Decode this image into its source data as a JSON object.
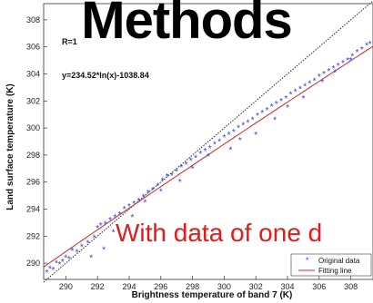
{
  "slide": {
    "title": "Methods",
    "overlay_note": "With data of one d"
  },
  "chart_data": {
    "type": "scatter",
    "xlabel": "Brightness temperature of band 7 (K)",
    "ylabel": "Land surface temperature (K)",
    "xlim": [
      288.6,
      309.4
    ],
    "ylim": [
      288.8,
      309.2
    ],
    "x_ticks": [
      290,
      292,
      294,
      296,
      298,
      300,
      302,
      304,
      306,
      308
    ],
    "y_ticks": [
      290,
      292,
      294,
      296,
      298,
      300,
      302,
      304,
      306,
      308
    ],
    "annotations": [
      "R=1",
      "y=234.52*ln(x)-1038.84"
    ],
    "legend": {
      "placement": "bottom-right",
      "entries": [
        "Original data",
        "Fitting line"
      ]
    },
    "colors": {
      "points": "#2b3fd8",
      "fit": "#e02020",
      "reference": "#222222"
    },
    "series": [
      {
        "name": "Original data",
        "marker": "*",
        "x": [
          288.8,
          289.0,
          289.2,
          289.4,
          289.6,
          289.8,
          290.0,
          290.2,
          290.4,
          290.7,
          291.0,
          291.4,
          291.8,
          292.0,
          292.2,
          292.5,
          292.8,
          293.1,
          293.4,
          293.7,
          294.0,
          294.3,
          294.6,
          294.9,
          295.2,
          295.5,
          295.8,
          296.1,
          296.4,
          296.7,
          297.0,
          297.3,
          297.6,
          297.9,
          298.2,
          298.5,
          298.8,
          299.1,
          299.4,
          299.7,
          300.0,
          300.3,
          300.6,
          300.9,
          301.2,
          301.5,
          301.8,
          302.1,
          302.4,
          302.7,
          303.0,
          303.3,
          303.6,
          303.9,
          304.2,
          304.5,
          304.8,
          305.1,
          305.4,
          305.7,
          306.0,
          306.3,
          306.6,
          306.9,
          307.2,
          307.5,
          307.8,
          308.1,
          308.4,
          308.7,
          309.0,
          309.2,
          291.6,
          292.4,
          293.0,
          294.2,
          295.0,
          296.0,
          297.2,
          298.0,
          299.0,
          300.4,
          301.0,
          302.0,
          303.2,
          304.0,
          305.0,
          306.2,
          307.0,
          308.0
        ],
        "y": [
          289.3,
          289.6,
          289.5,
          290.0,
          289.9,
          290.1,
          290.4,
          290.3,
          290.9,
          290.8,
          291.2,
          291.5,
          291.9,
          292.6,
          292.8,
          292.9,
          293.2,
          293.4,
          293.6,
          294.0,
          294.2,
          294.4,
          294.6,
          294.9,
          295.2,
          295.4,
          295.7,
          296.1,
          296.4,
          296.5,
          296.8,
          297.1,
          297.3,
          297.6,
          297.8,
          298.1,
          298.3,
          298.5,
          298.8,
          299.0,
          299.3,
          299.5,
          299.7,
          300.0,
          300.2,
          300.4,
          300.6,
          300.9,
          301.1,
          301.3,
          301.6,
          301.8,
          302.0,
          302.2,
          302.5,
          302.7,
          302.9,
          303.1,
          303.3,
          303.5,
          303.8,
          304.0,
          304.2,
          304.4,
          304.6,
          304.8,
          305.0,
          305.3,
          305.6,
          305.8,
          306.1,
          306.2,
          290.4,
          291.0,
          292.3,
          293.4,
          294.5,
          295.3,
          296.0,
          297.0,
          297.9,
          298.4,
          299.1,
          299.5,
          300.6,
          301.5,
          302.2,
          303.4,
          304.1,
          305.0
        ]
      },
      {
        "name": "Fitting line",
        "kind": "line",
        "equation": "y=234.52*ln(x)-1038.84",
        "a": 234.52,
        "b": -1038.84
      },
      {
        "kind": "reference-line",
        "x": [
          288.6,
          309.4
        ],
        "y": [
          288.6,
          309.4
        ]
      }
    ]
  }
}
